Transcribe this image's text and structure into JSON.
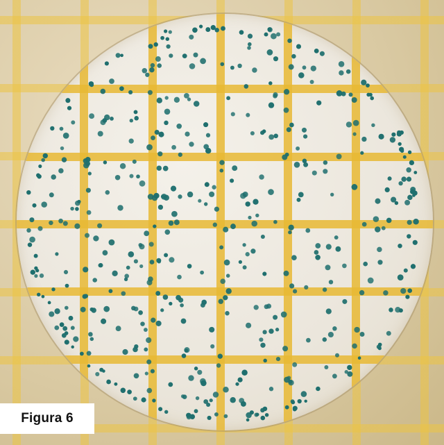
{
  "image": {
    "description_label": "petri-film-colony-plate",
    "caption": "Figura 6",
    "colors": {
      "grid": "#e8b934",
      "plate": "#f1ede4",
      "colony": "#1f6f6e",
      "caption_bg": "#ffffff",
      "caption_text": "#111111"
    }
  }
}
